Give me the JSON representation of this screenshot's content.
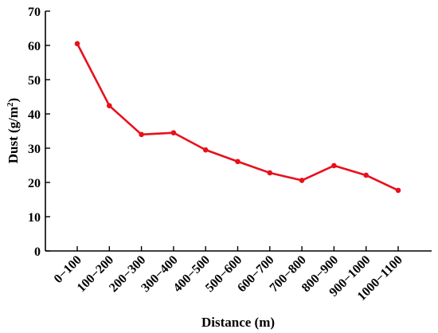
{
  "chart_data": {
    "type": "line",
    "categories": [
      "0−100",
      "100−200",
      "200−300",
      "300−400",
      "400−500",
      "500−600",
      "600−700",
      "700−800",
      "800−900",
      "900−1000",
      "1000−1100"
    ],
    "series": [
      {
        "values": [
          60.5,
          42.4,
          34.0,
          34.5,
          29.5,
          26.1,
          22.8,
          20.6,
          24.9,
          22.1,
          17.7
        ]
      }
    ],
    "xlabel": "Distance (m)",
    "ylabel": "Dust (g/m",
    "ylabel_sup": "2",
    "ylabel_close": ")",
    "ylim": [
      0,
      70
    ],
    "yticks": [
      "0",
      "10",
      "20",
      "30",
      "40",
      "50",
      "60",
      "70"
    ],
    "grid": false,
    "legend": "none",
    "color": "#e8101c"
  }
}
